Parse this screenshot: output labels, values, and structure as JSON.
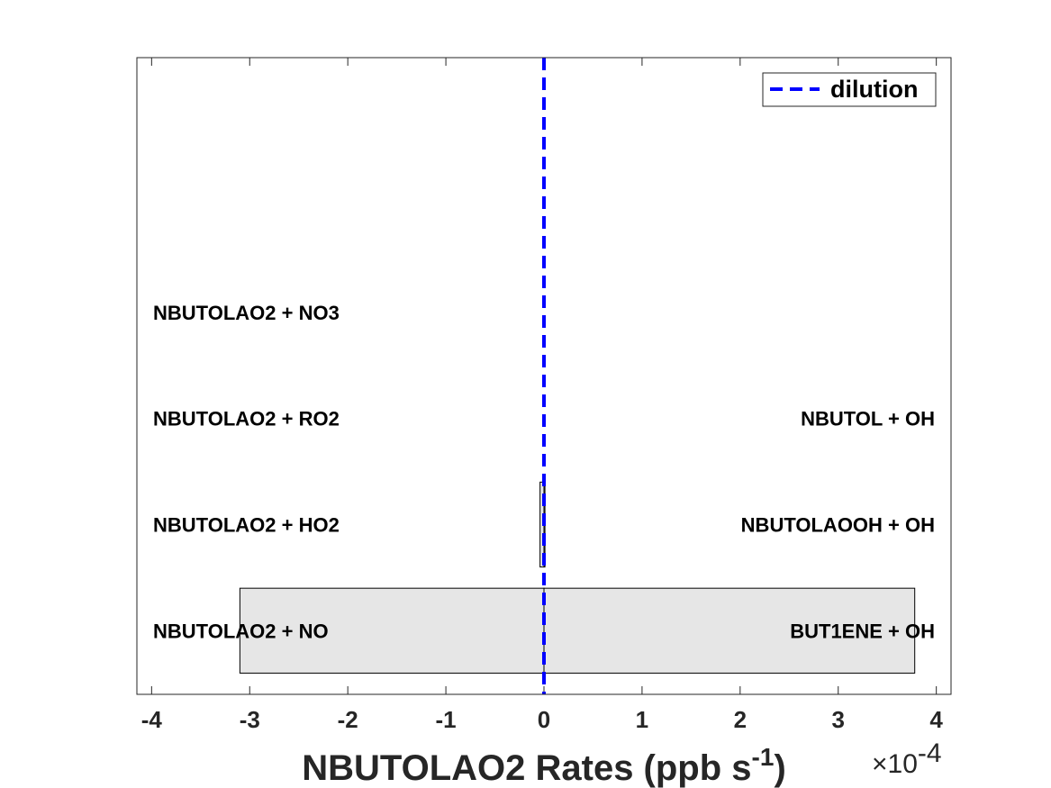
{
  "chart_data": {
    "type": "bar",
    "orientation": "horizontal-diverging",
    "xlabel_main": "NBUTOLAO2 Rates (ppb s",
    "xlabel_sup": "-1",
    "xlabel_close": ")",
    "xlim": [
      -4.15,
      4.15
    ],
    "x_ticks": [
      -4,
      -3,
      -2,
      -1,
      0,
      1,
      2,
      3,
      4
    ],
    "x_tick_labels": [
      "-4",
      "-3",
      "-2",
      "-1",
      "0",
      "1",
      "2",
      "3",
      "4"
    ],
    "x_multiplier_base": "×10",
    "x_multiplier_exp": "-4",
    "grid": false,
    "legend": {
      "position": "top-right",
      "entries": [
        {
          "label": "dilution",
          "style": "dashed",
          "color": "#0000ff"
        }
      ]
    },
    "rows": [
      {
        "loss_label": "NBUTOLAO2 + NO",
        "production_label": "BUT1ENE + OH",
        "loss_value": -3.1,
        "production_value": 3.78
      },
      {
        "loss_label": "NBUTOLAO2 + HO2",
        "production_label": "NBUTOLAOOH + OH",
        "loss_value": -0.04,
        "production_value": 0.01
      },
      {
        "loss_label": "NBUTOLAO2 + RO2",
        "production_label": "NBUTOL + OH",
        "loss_value": 0,
        "production_value": 0
      },
      {
        "loss_label": "NBUTOLAO2 + NO3",
        "production_label": "",
        "loss_value": 0,
        "production_value": 0
      }
    ],
    "ylim": [
      0.4,
      6.4
    ],
    "dilution_value": 0,
    "colors": {
      "bar_fill": "#e6e6e6",
      "bar_edge": "#000000",
      "dilution": "#0000ff",
      "axis": "#262626"
    }
  }
}
